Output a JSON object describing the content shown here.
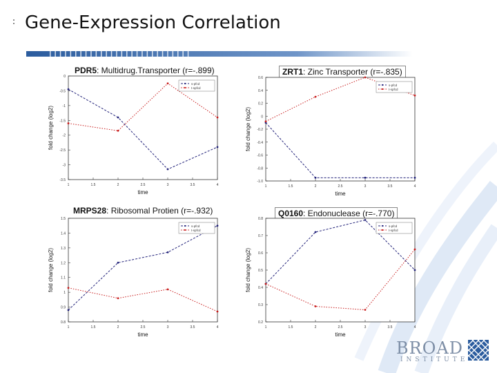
{
  "title": "Gene-Expression Correlation",
  "logo": {
    "name": "BROAD",
    "sub": "INSTITUTE"
  },
  "colors": {
    "series1": "#22227a",
    "series2": "#c81a1a",
    "accent": "#2b5c9e",
    "swoosh": "#dfe9f6"
  },
  "chart_data": [
    {
      "type": "line",
      "gene": "PDR5",
      "desc": ": Multidrug.Transporter (r=-.899)",
      "xlabel": "time",
      "ylabel": "fold change (log2)",
      "xlim": [
        1,
        4
      ],
      "ylim": [
        -3.5,
        0
      ],
      "xticks": [
        "1",
        "1.5",
        "2",
        "2.5",
        "3",
        "3.5",
        "4"
      ],
      "yticks": [
        "0",
        "-0.5",
        "-1",
        "-1.5",
        "-2",
        "-2.5",
        "-3",
        "-3.5"
      ],
      "series": [
        {
          "name": "s-pfcd",
          "x": [
            1,
            2,
            3,
            4
          ],
          "values": [
            -0.45,
            -1.4,
            -3.15,
            -2.4
          ]
        },
        {
          "name": "t-spfcd",
          "x": [
            1,
            2,
            3,
            4
          ],
          "values": [
            -1.6,
            -1.85,
            -0.25,
            -1.4
          ]
        }
      ]
    },
    {
      "type": "line",
      "gene": "ZRT1",
      "desc": ": Zinc Transporter (r=-.835)",
      "xlabel": "time",
      "ylabel": "fold change (log2)",
      "xlim": [
        1,
        4
      ],
      "ylim": [
        -1.0,
        0.6
      ],
      "xticks": [
        "1",
        "1.5",
        "2",
        "2.5",
        "3",
        "3.5",
        "4"
      ],
      "yticks": [
        "0.6",
        "0.4",
        "0.2",
        "0",
        "-0.2",
        "-0.4",
        "-0.6",
        "-0.8",
        "-1.0"
      ],
      "series": [
        {
          "name": "s-pfcd",
          "x": [
            1,
            2,
            3,
            4
          ],
          "values": [
            -0.1,
            -0.95,
            -0.95,
            -0.95
          ]
        },
        {
          "name": "t-spfcd",
          "x": [
            1,
            2,
            3,
            4
          ],
          "values": [
            -0.08,
            0.3,
            0.6,
            0.32
          ]
        }
      ]
    },
    {
      "type": "line",
      "gene": "MRPS28",
      "desc": ": Ribosomal Protien (r=-.932)",
      "xlabel": "time",
      "ylabel": "fold change (log2)",
      "xlim": [
        1,
        4
      ],
      "ylim": [
        0.8,
        1.5
      ],
      "xticks": [
        "1",
        "1.5",
        "2",
        "2.5",
        "3",
        "3.5",
        "4"
      ],
      "yticks": [
        "1.5",
        "1.4",
        "1.3",
        "1.2",
        "1.1",
        "1",
        "0.9",
        "0.8"
      ],
      "series": [
        {
          "name": "s-pfcd",
          "x": [
            1,
            2,
            3,
            4
          ],
          "values": [
            0.88,
            1.2,
            1.27,
            1.45
          ]
        },
        {
          "name": "t-spfcd",
          "x": [
            1,
            2,
            3,
            4
          ],
          "values": [
            1.03,
            0.96,
            1.02,
            0.87
          ]
        }
      ]
    },
    {
      "type": "line",
      "gene": "Q0160",
      "desc": ": Endonuclease (r=-.770)",
      "xlabel": "time",
      "ylabel": "fold change (log2)",
      "xlim": [
        1,
        4
      ],
      "ylim": [
        0.2,
        0.8
      ],
      "xticks": [
        "1",
        "1.5",
        "2",
        "2.5",
        "3",
        "3.5",
        "4"
      ],
      "yticks": [
        "0.8",
        "0.7",
        "0.6",
        "0.5",
        "0.4",
        "0.3",
        "0.2"
      ],
      "series": [
        {
          "name": "s-pfcd",
          "x": [
            1,
            2,
            3,
            4
          ],
          "values": [
            0.42,
            0.72,
            0.79,
            0.5
          ]
        },
        {
          "name": "t-spfcd",
          "x": [
            1,
            2,
            3,
            4
          ],
          "values": [
            0.42,
            0.29,
            0.27,
            0.62
          ]
        }
      ]
    }
  ]
}
